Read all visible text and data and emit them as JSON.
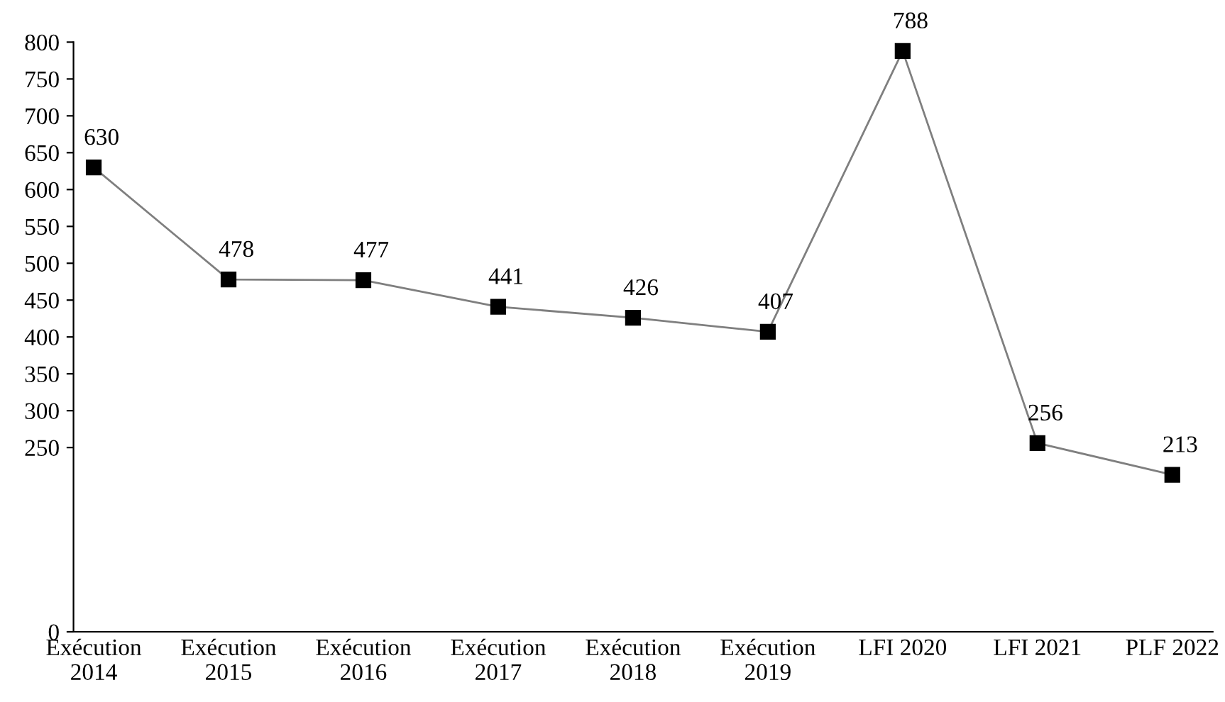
{
  "chart_data": {
    "type": "line",
    "categories": [
      "Exécution\n2014",
      "Exécution\n2015",
      "Exécution\n2016",
      "Exécution\n2017",
      "Exécution\n2018",
      "Exécution\n2019",
      "LFI 2020",
      "LFI 2021",
      "PLF 2022"
    ],
    "series": [
      {
        "color": "#000000",
        "values": [
          630,
          478,
          477,
          441,
          426,
          407,
          788,
          256,
          213
        ]
      }
    ],
    "ylim": [
      0,
      800
    ],
    "yticks": [
      0,
      250,
      300,
      350,
      400,
      450,
      500,
      550,
      600,
      650,
      700,
      750,
      800
    ],
    "data_labels": true,
    "marker": "square",
    "line_style": "solid",
    "grid": false,
    "legend": false
  }
}
